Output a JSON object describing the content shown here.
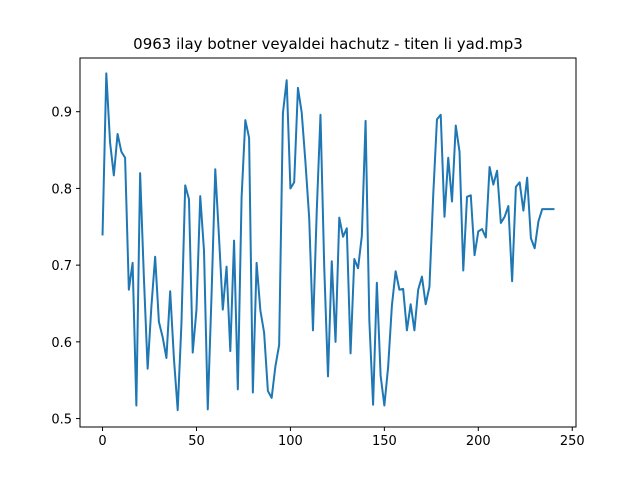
{
  "chart_data": {
    "type": "line",
    "title": "0963 ilay botner veyaldei hachutz - titen li yad.mp3",
    "xlabel": "",
    "ylabel": "",
    "xlim": [
      -12,
      252
    ],
    "ylim": [
      0.489,
      0.97
    ],
    "xticks": [
      0,
      50,
      100,
      150,
      200,
      250
    ],
    "yticks": [
      0.5,
      0.6,
      0.7,
      0.8,
      0.9
    ],
    "xtick_labels": [
      "0",
      "50",
      "100",
      "150",
      "200",
      "250"
    ],
    "ytick_labels": [
      "0.5",
      "0.6",
      "0.7",
      "0.8",
      "0.9"
    ],
    "grid": false,
    "series": [
      {
        "color": "#1f77b4",
        "x": [
          0,
          2,
          4,
          6,
          8,
          10,
          12,
          14,
          16,
          18,
          20,
          22,
          24,
          26,
          28,
          30,
          32,
          34,
          36,
          38,
          40,
          42,
          44,
          46,
          48,
          50,
          52,
          54,
          56,
          58,
          60,
          62,
          64,
          66,
          68,
          70,
          72,
          74,
          76,
          78,
          80,
          82,
          84,
          86,
          88,
          90,
          92,
          94,
          96,
          98,
          100,
          102,
          104,
          106,
          108,
          110,
          112,
          114,
          116,
          118,
          120,
          122,
          124,
          126,
          128,
          130,
          132,
          134,
          136,
          138,
          140,
          142,
          144,
          146,
          148,
          150,
          152,
          154,
          156,
          158,
          160,
          162,
          164,
          166,
          168,
          170,
          172,
          174,
          176,
          178,
          180,
          182,
          184,
          186,
          188,
          190,
          192,
          194,
          196,
          198,
          200,
          202,
          204,
          206,
          208,
          210,
          212,
          214,
          216,
          218,
          220,
          222,
          224,
          226,
          228,
          230,
          232,
          234,
          236,
          238,
          240
        ],
        "y": [
          0.74,
          0.95,
          0.86,
          0.817,
          0.871,
          0.848,
          0.84,
          0.668,
          0.703,
          0.517,
          0.82,
          0.684,
          0.565,
          0.646,
          0.711,
          0.626,
          0.606,
          0.579,
          0.666,
          0.578,
          0.511,
          0.624,
          0.804,
          0.786,
          0.586,
          0.642,
          0.79,
          0.719,
          0.512,
          0.66,
          0.825,
          0.736,
          0.642,
          0.698,
          0.588,
          0.732,
          0.538,
          0.788,
          0.889,
          0.866,
          0.534,
          0.703,
          0.641,
          0.612,
          0.536,
          0.527,
          0.568,
          0.596,
          0.898,
          0.941,
          0.8,
          0.808,
          0.931,
          0.899,
          0.834,
          0.761,
          0.615,
          0.77,
          0.896,
          0.697,
          0.555,
          0.705,
          0.6,
          0.762,
          0.737,
          0.748,
          0.585,
          0.708,
          0.696,
          0.738,
          0.888,
          0.628,
          0.518,
          0.677,
          0.556,
          0.517,
          0.567,
          0.647,
          0.692,
          0.668,
          0.669,
          0.615,
          0.649,
          0.615,
          0.668,
          0.685,
          0.649,
          0.672,
          0.791,
          0.89,
          0.896,
          0.763,
          0.84,
          0.783,
          0.882,
          0.848,
          0.693,
          0.789,
          0.791,
          0.713,
          0.744,
          0.747,
          0.736,
          0.828,
          0.805,
          0.823,
          0.755,
          0.763,
          0.777,
          0.679,
          0.802,
          0.808,
          0.771,
          0.814,
          0.735,
          0.722,
          0.757,
          0.773,
          0.773,
          0.773,
          0.773
        ]
      }
    ]
  }
}
